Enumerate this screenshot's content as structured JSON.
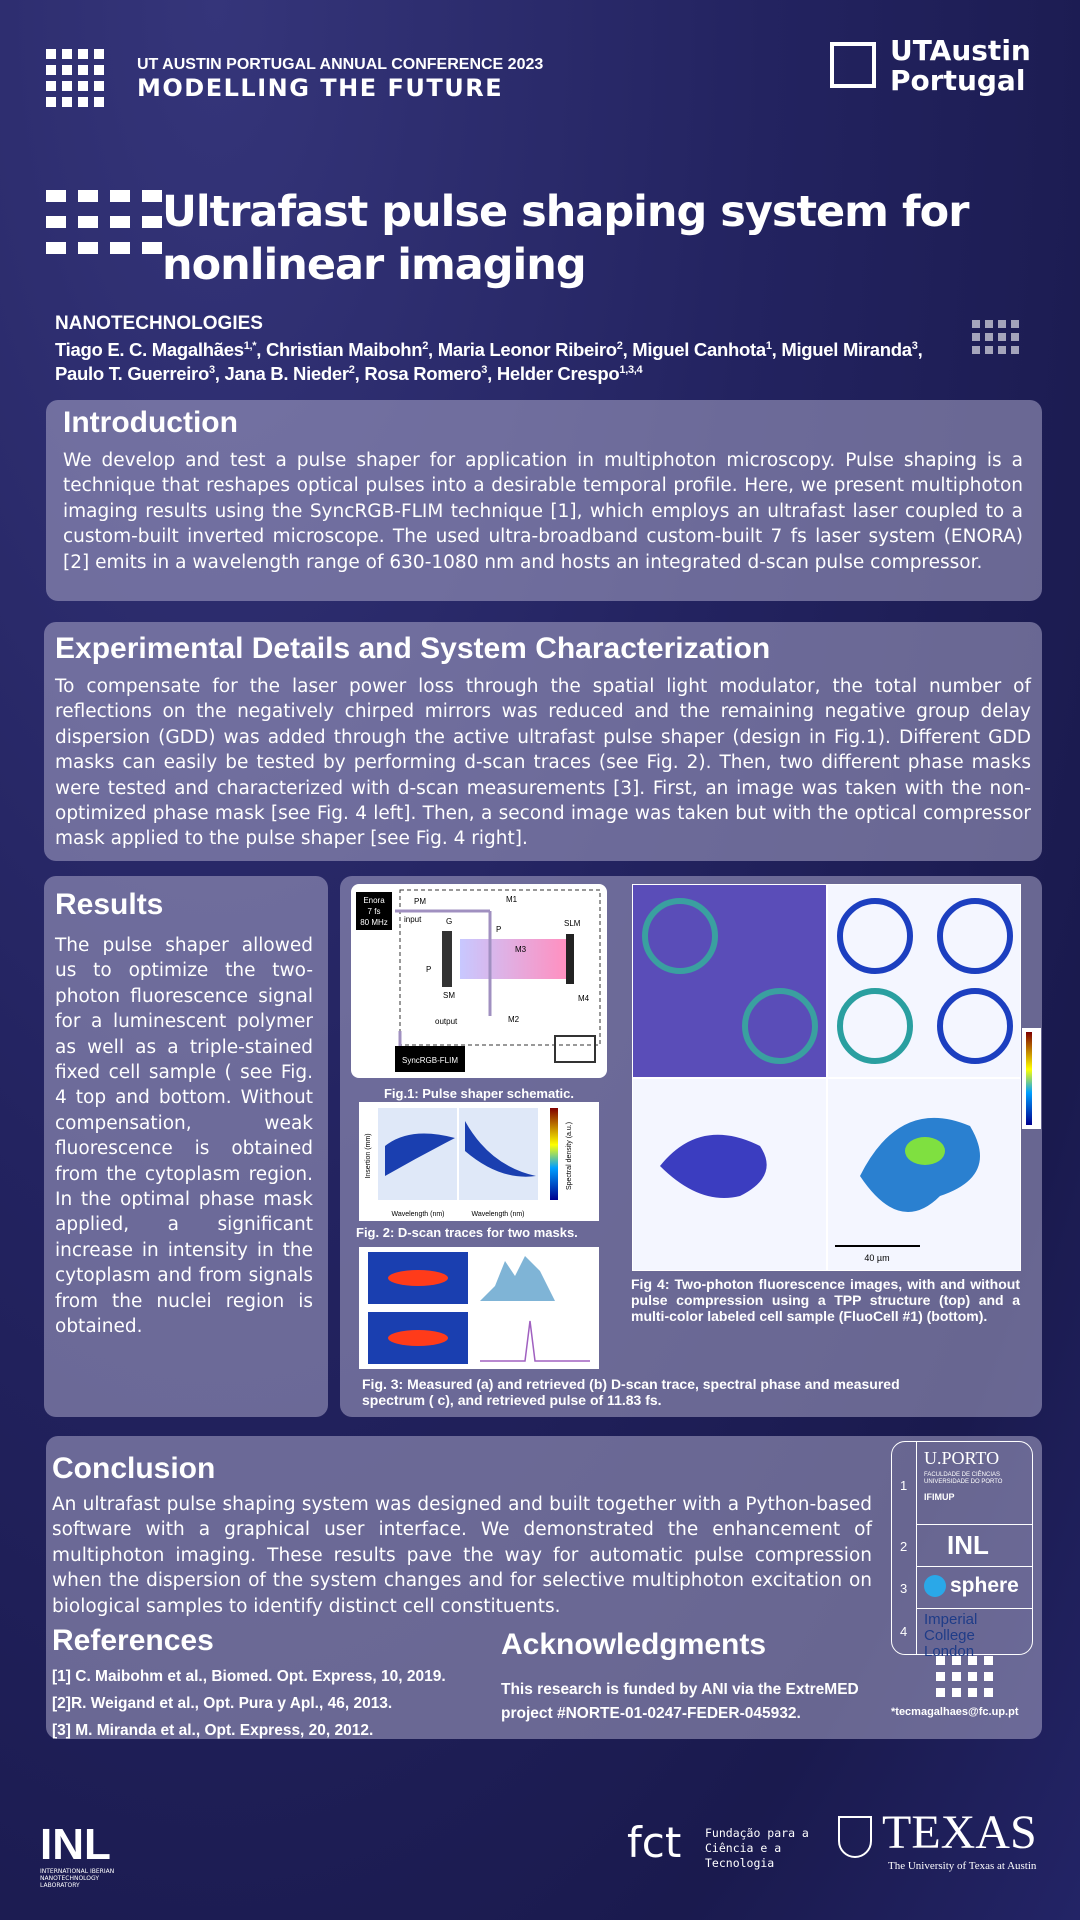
{
  "header": {
    "conference": "UT AUSTIN PORTUGAL ANNUAL CONFERENCE 2023",
    "theme": "MODELLING THE FUTURE",
    "logo_line1": "UTAustin",
    "logo_line2": "Portugal"
  },
  "title_line1": "Ultrafast pulse shaping system for",
  "title_line2": "nonlinear imaging",
  "category": "NANOTECHNOLOGIES",
  "authors": [
    {
      "name": "Tiago E. C. Magalhães",
      "affil": "1,*"
    },
    {
      "name": "Christian Maibohn",
      "affil": "2"
    },
    {
      "name": "Maria Leonor Ribeiro",
      "affil": "2"
    },
    {
      "name": "Miguel Canhota",
      "affil": "1"
    },
    {
      "name": "Miguel Miranda",
      "affil": "3"
    },
    {
      "name": "Paulo T. Guerreiro",
      "affil": "3"
    },
    {
      "name": "Jana B. Nieder",
      "affil": "2"
    },
    {
      "name": "Rosa Romero",
      "affil": "3"
    },
    {
      "name": "Helder Crespo",
      "affil": "1,3,4"
    }
  ],
  "introduction": {
    "heading": "Introduction",
    "text": "We develop and test a pulse shaper for application in multiphoton microscopy. Pulse shaping is a technique that reshapes optical pulses into a desirable temporal profile. Here, we present multiphoton imaging results using the SyncRGB-FLIM technique [1], which employs an ultrafast laser coupled to a custom-built inverted microscope. The used ultra-broadband custom-built 7 fs laser system (ENORA) [2] emits in a wavelength range of 630-1080 nm and hosts an integrated d-scan pulse compressor."
  },
  "experimental": {
    "heading": "Experimental Details and System Characterization",
    "text": "To compensate for the laser power loss through the spatial light modulator, the total number of reflections on the negatively chirped mirrors was reduced and the remaining negative group delay dispersion (GDD) was added through the active ultrafast pulse shaper (design in Fig.1). Different GDD masks can easily be tested by performing d-scan traces (see Fig. 2). Then, two different phase masks were tested and characterized with d-scan measurements [3]. First, an image was taken with the non-optimized phase mask [see Fig. 4 left]. Then, a second image was taken but with the optical compressor mask applied to the pulse shaper [see Fig. 4 right]."
  },
  "results": {
    "heading": "Results",
    "text": "The pulse shaper allowed us to optimize the two-photon fluorescence signal for a luminescent polymer as well as a triple-stained fixed cell sample ( see Fig. 4 top and bottom. Without compensation, weak fluorescence is obtained from the cytoplasm region. In the optimal phase mask applied, a significant increase in intensity in the cytoplasm and from signals from the nuclei region is obtained."
  },
  "fig1": {
    "caption": "Fig.1: Pulse shaper schematic.",
    "laser": [
      "Enora",
      "7 fs",
      "80 MHz"
    ],
    "labels": [
      "PM",
      "input",
      "G",
      "M1",
      "P",
      "SLM",
      "M3",
      "P",
      "SM",
      "M4",
      "output",
      "M2",
      "SyncRGB-FLIM"
    ]
  },
  "fig2": {
    "caption": "Fig. 2: D-scan traces for two masks.",
    "ylabel": "Insertion (mm)",
    "xlabel": "Wavelength (nm)",
    "cbar": "Spectral density (a.u.)"
  },
  "fig3": {
    "caption": "Fig. 3: Measured (a) and retrieved (b) D-scan trace, spectral phase and measured spectrum ( c), and retrieved pulse of 11.83 fs."
  },
  "fig4": {
    "caption": "Fig 4: Two-photon fluorescence images, with and without pulse compression using a TPP structure (top) and a multi-color labeled cell sample (FluoCell #1) (bottom).",
    "scale": "40 µm"
  },
  "conclusion": {
    "heading": "Conclusion",
    "text": "An ultrafast pulse shaping system was designed and built together with a Python-based software with a graphical user interface. We demonstrated the enhancement of multiphoton imaging. These results pave the way for automatic pulse compression when the dispersion of the system changes and for selective multiphoton excitation on biological samples to identify distinct cell constituents."
  },
  "references": {
    "heading": "References",
    "items": [
      "[1] C. Maibohm et al., Biomed. Opt. Express, 10, 2019.",
      "[2]R. Weigand et al., Opt. Pura y Apl., 46,  2013.",
      "[3] M. Miranda et al., Opt. Express, 20, 2012."
    ]
  },
  "acknowledgments": {
    "heading": "Acknowledgments",
    "text": "This research is funded by ANI via the ExtreMED project #NORTE-01-0247-FEDER-045932."
  },
  "contact": "*tecmagalhaes@fc.up.pt",
  "affiliations": [
    {
      "number": "1",
      "logos": [
        "U.PORTO",
        "FACULDADE DE CIÊNCIAS UNIVERSIDADE DO PORTO",
        "IFIMUP"
      ]
    },
    {
      "number": "2",
      "logos": [
        "INL"
      ]
    },
    {
      "number": "3",
      "logos": [
        "sphere"
      ]
    },
    {
      "number": "4",
      "logos": [
        "Imperial College London"
      ]
    }
  ],
  "footer": {
    "inl": "INL",
    "inl_sub": "INTERNATIONAL IBERIAN NANOTECHNOLOGY LABORATORY",
    "fct": "fct",
    "fct_sub": "Fundação para a Ciência e a Tecnologia",
    "texas": "TEXAS",
    "texas_sub": "The University of Texas at Austin"
  }
}
